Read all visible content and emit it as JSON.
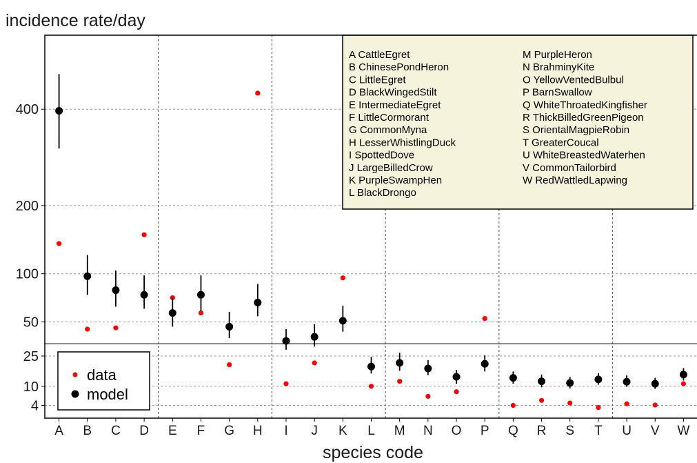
{
  "chart_data": {
    "type": "scatter",
    "title": "",
    "ylabel": "incidence rate/day",
    "xlabel": "species code",
    "categories": [
      "A",
      "B",
      "C",
      "D",
      "E",
      "F",
      "G",
      "H",
      "I",
      "J",
      "K",
      "L",
      "M",
      "N",
      "O",
      "P",
      "Q",
      "R",
      "S",
      "T",
      "U",
      "V",
      "W"
    ],
    "y_ticks": [
      "4",
      "10",
      "25",
      "50",
      "100",
      "200",
      "400"
    ],
    "y_tick_values": [
      4,
      10,
      25,
      50,
      100,
      200,
      400
    ],
    "y_scale": "sqrt",
    "ylim": [
      1.5,
      600
    ],
    "reference_line_y": 33,
    "vertical_group_lines_after": [
      "D",
      "H",
      "L",
      "P",
      "T"
    ],
    "grid": true,
    "series": [
      {
        "name": "data",
        "color": "#ff0000",
        "values": [
          140,
          44,
          45,
          153,
          73,
          58,
          20,
          440,
          11,
          21,
          95,
          10,
          12,
          6.5,
          8,
          53,
          4,
          5.3,
          4.6,
          3.5,
          4.4,
          4.1,
          11
        ]
      },
      {
        "name": "model",
        "color": "#000000",
        "values": [
          396,
          97,
          81,
          76,
          58,
          76,
          46,
          68,
          35,
          38,
          51,
          19,
          21,
          18,
          14,
          20.5,
          13.5,
          12,
          11.3,
          12.8,
          11.8,
          11,
          15
        ],
        "lower": [
          310,
          76,
          64,
          62,
          46,
          60,
          37,
          55,
          29,
          31,
          42,
          15.5,
          16.8,
          14.7,
          11,
          16.5,
          11,
          9.6,
          9.2,
          10.6,
          9.8,
          9,
          12.3
        ],
        "upper": [
          490,
          124,
          104,
          98,
          73,
          98,
          59,
          88,
          44,
          48,
          65,
          24.5,
          27,
          22.5,
          17.2,
          25.5,
          16.5,
          15,
          14,
          15.6,
          14.6,
          13.5,
          18.2
        ]
      }
    ],
    "legend": {
      "placement": "bottom-left",
      "entries": [
        "data",
        "model"
      ]
    },
    "species_legend": {
      "placement": "top-right",
      "col1": [
        "A CattleEgret",
        "B ChinesePondHeron",
        "C LittleEgret",
        "D BlackWingedStilt",
        "E IntermediateEgret",
        "F LittleCormorant",
        "G CommonMyna",
        "H LesserWhistlingDuck",
        "I SpottedDove",
        "J LargeBilledCrow",
        "K PurpleSwampHen",
        "L BlackDrongo"
      ],
      "col2": [
        "M PurpleHeron",
        "N BrahminyKite",
        "O YellowVentedBulbul",
        "P BarnSwallow",
        "Q WhiteThroatedKingfisher",
        "R ThickBilledGreenPigeon",
        "S OrientalMagpieRobin",
        "T GreaterCoucal",
        "U WhiteBreastedWaterhen",
        "V CommonTailorbird",
        "W RedWattledLapwing"
      ]
    }
  }
}
